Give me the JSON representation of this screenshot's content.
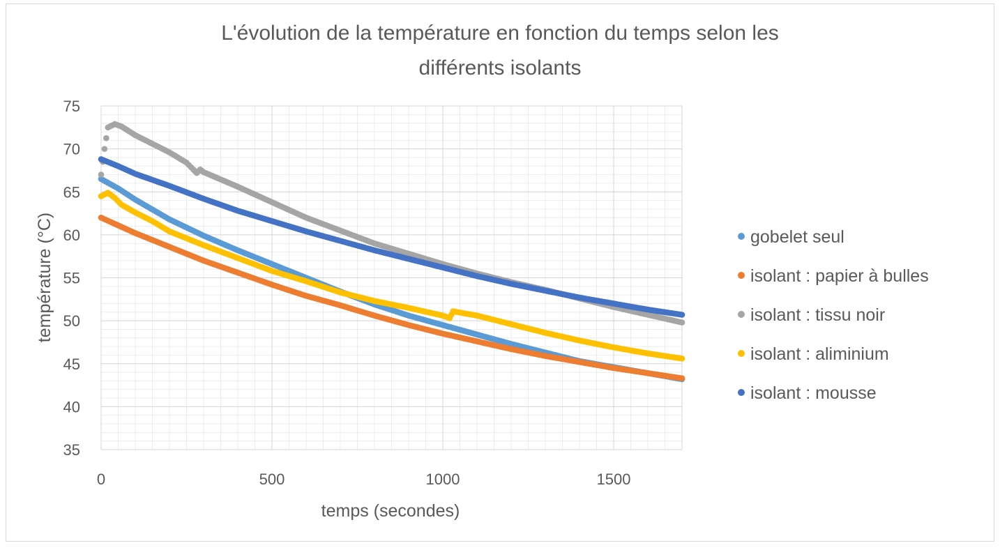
{
  "chart_data": {
    "type": "scatter",
    "title_lines": [
      "L'évolution de la température en fonction du temps selon les",
      "différents isolants"
    ],
    "xlabel": "temps (secondes)",
    "ylabel": "température (°C)",
    "xlim": [
      0,
      1700
    ],
    "ylim": [
      35,
      75
    ],
    "x_ticks": [
      0,
      500,
      1000,
      1500
    ],
    "y_ticks": [
      35,
      40,
      45,
      50,
      55,
      60,
      65,
      70,
      75
    ],
    "x_tick_labels": [
      "0",
      "500",
      "1000",
      "1500"
    ],
    "y_tick_labels": [
      "35",
      "40",
      "45",
      "50",
      "55",
      "60",
      "65",
      "70",
      "75"
    ],
    "grid": "major and minor",
    "legend_position": "right",
    "series": [
      {
        "name": "gobelet seul",
        "color": "#5b9bd5",
        "points": [
          [
            0,
            66.5
          ],
          [
            50,
            65.4
          ],
          [
            100,
            64.1
          ],
          [
            200,
            61.8
          ],
          [
            300,
            59.9
          ],
          [
            400,
            58.2
          ],
          [
            500,
            56.6
          ],
          [
            600,
            55.0
          ],
          [
            700,
            53.4
          ],
          [
            800,
            51.9
          ],
          [
            900,
            50.6
          ],
          [
            1000,
            49.5
          ],
          [
            1100,
            48.4
          ],
          [
            1200,
            47.3
          ],
          [
            1300,
            46.3
          ],
          [
            1400,
            45.3
          ],
          [
            1500,
            44.6
          ],
          [
            1600,
            43.9
          ],
          [
            1700,
            43.2
          ]
        ]
      },
      {
        "name": "isolant : papier à bulles",
        "color": "#ed7d31",
        "points": [
          [
            0,
            62.0
          ],
          [
            50,
            61.1
          ],
          [
            100,
            60.2
          ],
          [
            200,
            58.6
          ],
          [
            300,
            57.0
          ],
          [
            400,
            55.6
          ],
          [
            500,
            54.2
          ],
          [
            600,
            52.9
          ],
          [
            700,
            51.8
          ],
          [
            800,
            50.6
          ],
          [
            900,
            49.5
          ],
          [
            1000,
            48.5
          ],
          [
            1100,
            47.6
          ],
          [
            1200,
            46.7
          ],
          [
            1300,
            45.9
          ],
          [
            1400,
            45.2
          ],
          [
            1500,
            44.5
          ],
          [
            1600,
            43.9
          ],
          [
            1700,
            43.3
          ]
        ]
      },
      {
        "name": "isolant : tissu noir",
        "color": "#a5a5a5",
        "points": [
          [
            0,
            67.0
          ],
          [
            10,
            70.0
          ],
          [
            20,
            72.5
          ],
          [
            40,
            72.9
          ],
          [
            60,
            72.6
          ],
          [
            100,
            71.6
          ],
          [
            150,
            70.6
          ],
          [
            200,
            69.6
          ],
          [
            250,
            68.4
          ],
          [
            270,
            67.6
          ],
          [
            280,
            67.2
          ],
          [
            290,
            67.6
          ],
          [
            300,
            67.3
          ],
          [
            400,
            65.6
          ],
          [
            500,
            63.8
          ],
          [
            600,
            62.0
          ],
          [
            700,
            60.5
          ],
          [
            800,
            59.0
          ],
          [
            900,
            57.8
          ],
          [
            1000,
            56.6
          ],
          [
            1100,
            55.5
          ],
          [
            1200,
            54.5
          ],
          [
            1300,
            53.6
          ],
          [
            1400,
            52.6
          ],
          [
            1500,
            51.6
          ],
          [
            1600,
            50.7
          ],
          [
            1700,
            49.8
          ]
        ]
      },
      {
        "name": "isolant : aliminium",
        "color": "#ffc000",
        "points": [
          [
            0,
            64.5
          ],
          [
            20,
            64.9
          ],
          [
            40,
            64.3
          ],
          [
            60,
            63.5
          ],
          [
            100,
            62.6
          ],
          [
            150,
            61.6
          ],
          [
            200,
            60.4
          ],
          [
            300,
            58.8
          ],
          [
            400,
            57.3
          ],
          [
            500,
            55.8
          ],
          [
            600,
            54.6
          ],
          [
            700,
            53.3
          ],
          [
            800,
            52.3
          ],
          [
            900,
            51.5
          ],
          [
            1000,
            50.6
          ],
          [
            1020,
            50.3
          ],
          [
            1030,
            51.1
          ],
          [
            1100,
            50.6
          ],
          [
            1200,
            49.6
          ],
          [
            1300,
            48.6
          ],
          [
            1400,
            47.7
          ],
          [
            1500,
            46.9
          ],
          [
            1600,
            46.2
          ],
          [
            1700,
            45.6
          ]
        ]
      },
      {
        "name": "isolant : mousse",
        "color": "#4472c4",
        "points": [
          [
            0,
            68.8
          ],
          [
            50,
            68.0
          ],
          [
            100,
            67.1
          ],
          [
            200,
            65.7
          ],
          [
            300,
            64.2
          ],
          [
            400,
            62.8
          ],
          [
            500,
            61.6
          ],
          [
            600,
            60.4
          ],
          [
            700,
            59.3
          ],
          [
            800,
            58.2
          ],
          [
            900,
            57.2
          ],
          [
            1000,
            56.2
          ],
          [
            1100,
            55.2
          ],
          [
            1200,
            54.3
          ],
          [
            1300,
            53.5
          ],
          [
            1400,
            52.7
          ],
          [
            1500,
            52.0
          ],
          [
            1600,
            51.3
          ],
          [
            1700,
            50.7
          ]
        ]
      }
    ]
  }
}
